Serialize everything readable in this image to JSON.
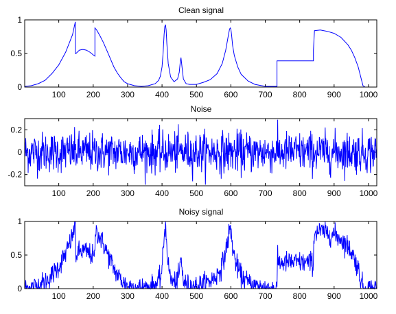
{
  "chart_data": [
    {
      "type": "line",
      "title": "Clean signal",
      "xlim": [
        1,
        1024
      ],
      "ylim": [
        0,
        1
      ],
      "xticks": [
        100,
        200,
        300,
        400,
        500,
        600,
        700,
        800,
        900,
        1000
      ],
      "yticks": [
        0,
        0.5,
        1
      ],
      "yticklabels": [
        "0",
        "0.5",
        "1"
      ],
      "series": [
        {
          "color": "#0000ff",
          "x": [
            1,
            20,
            40,
            60,
            80,
            100,
            120,
            140,
            148,
            148,
            150,
            160,
            170,
            180,
            190,
            200,
            205,
            205,
            210,
            220,
            230,
            240,
            250,
            260,
            270,
            280,
            290,
            300,
            320,
            340,
            360,
            380,
            390,
            395,
            400,
            403,
            406,
            408,
            410,
            412,
            414,
            418,
            425,
            435,
            445,
            450,
            453,
            455,
            458,
            462,
            470,
            480,
            500,
            520,
            540,
            560,
            575,
            585,
            592,
            596,
            598,
            600,
            602,
            605,
            610,
            620,
            630,
            650,
            670,
            700,
            734,
            734,
            840,
            840,
            843,
            860,
            880,
            900,
            920,
            940,
            950,
            960,
            970,
            975,
            980,
            984,
            990,
            1024
          ],
          "y": [
            0.01,
            0.02,
            0.05,
            0.1,
            0.2,
            0.33,
            0.52,
            0.78,
            0.97,
            0.5,
            0.5,
            0.55,
            0.56,
            0.55,
            0.52,
            0.48,
            0.46,
            0.88,
            0.85,
            0.76,
            0.66,
            0.54,
            0.42,
            0.3,
            0.21,
            0.14,
            0.08,
            0.05,
            0.02,
            0.01,
            0.02,
            0.05,
            0.1,
            0.16,
            0.3,
            0.5,
            0.78,
            0.9,
            0.93,
            0.85,
            0.65,
            0.35,
            0.15,
            0.08,
            0.12,
            0.22,
            0.38,
            0.44,
            0.3,
            0.12,
            0.05,
            0.04,
            0.04,
            0.07,
            0.11,
            0.2,
            0.35,
            0.55,
            0.75,
            0.86,
            0.88,
            0.86,
            0.78,
            0.62,
            0.47,
            0.3,
            0.19,
            0.09,
            0.04,
            0.01,
            0.01,
            0.39,
            0.39,
            0.55,
            0.84,
            0.85,
            0.83,
            0.8,
            0.74,
            0.63,
            0.55,
            0.44,
            0.3,
            0.2,
            0.1,
            0.02,
            0.0,
            0.0
          ]
        }
      ]
    },
    {
      "type": "line",
      "title": "Noise",
      "xlim": [
        1,
        1024
      ],
      "ylim": [
        -0.3,
        0.3
      ],
      "xticks": [
        100,
        200,
        300,
        400,
        500,
        600,
        700,
        800,
        900,
        1000
      ],
      "yticks": [
        -0.2,
        0,
        0.2
      ],
      "yticklabels": [
        "-0.2",
        "0",
        "0.2"
      ],
      "series": [
        {
          "color": "#0000ff",
          "noise_std": 0.09
        }
      ]
    },
    {
      "type": "line",
      "title": "Noisy signal",
      "xlim": [
        1,
        1024
      ],
      "ylim": [
        0,
        1
      ],
      "xticks": [
        100,
        200,
        300,
        400,
        500,
        600,
        700,
        800,
        900,
        1000
      ],
      "yticks": [
        0,
        0.5,
        1
      ],
      "yticklabels": [
        "0",
        "0.5",
        "1"
      ],
      "series": [
        {
          "color": "#0000ff",
          "clip": [
            0,
            1
          ]
        }
      ]
    }
  ]
}
